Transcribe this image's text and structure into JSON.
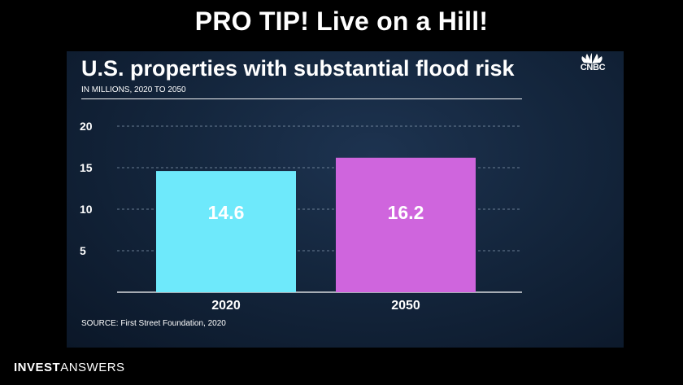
{
  "banner": {
    "title": "PRO TIP! Live on a Hill!"
  },
  "brand": {
    "part1": "INVEST",
    "part2": "ANSWERS"
  },
  "logo": {
    "name": "cnbc-peacock-icon",
    "text": "CNBC"
  },
  "colors": {
    "background": "#000000",
    "panel": "#14263d",
    "bar_2020": "#6ee9fb",
    "bar_2050": "#cf65dd",
    "text": "#ffffff"
  },
  "chart_data": {
    "type": "bar",
    "title": "U.S. properties with substantial flood risk",
    "subtitle": "IN MILLIONS, 2020 TO 2050",
    "source": "SOURCE: First Street Foundation, 2020",
    "categories": [
      "2020",
      "2050"
    ],
    "values": [
      14.6,
      16.2
    ],
    "value_labels": [
      "14.6",
      "16.2"
    ],
    "ylim": [
      0,
      20
    ],
    "yticks": [
      5,
      10,
      15,
      20
    ],
    "ytick_labels": [
      "5",
      "10",
      "15",
      "20"
    ],
    "grid": "dashed horizontal",
    "xlabel": "",
    "ylabel": ""
  }
}
